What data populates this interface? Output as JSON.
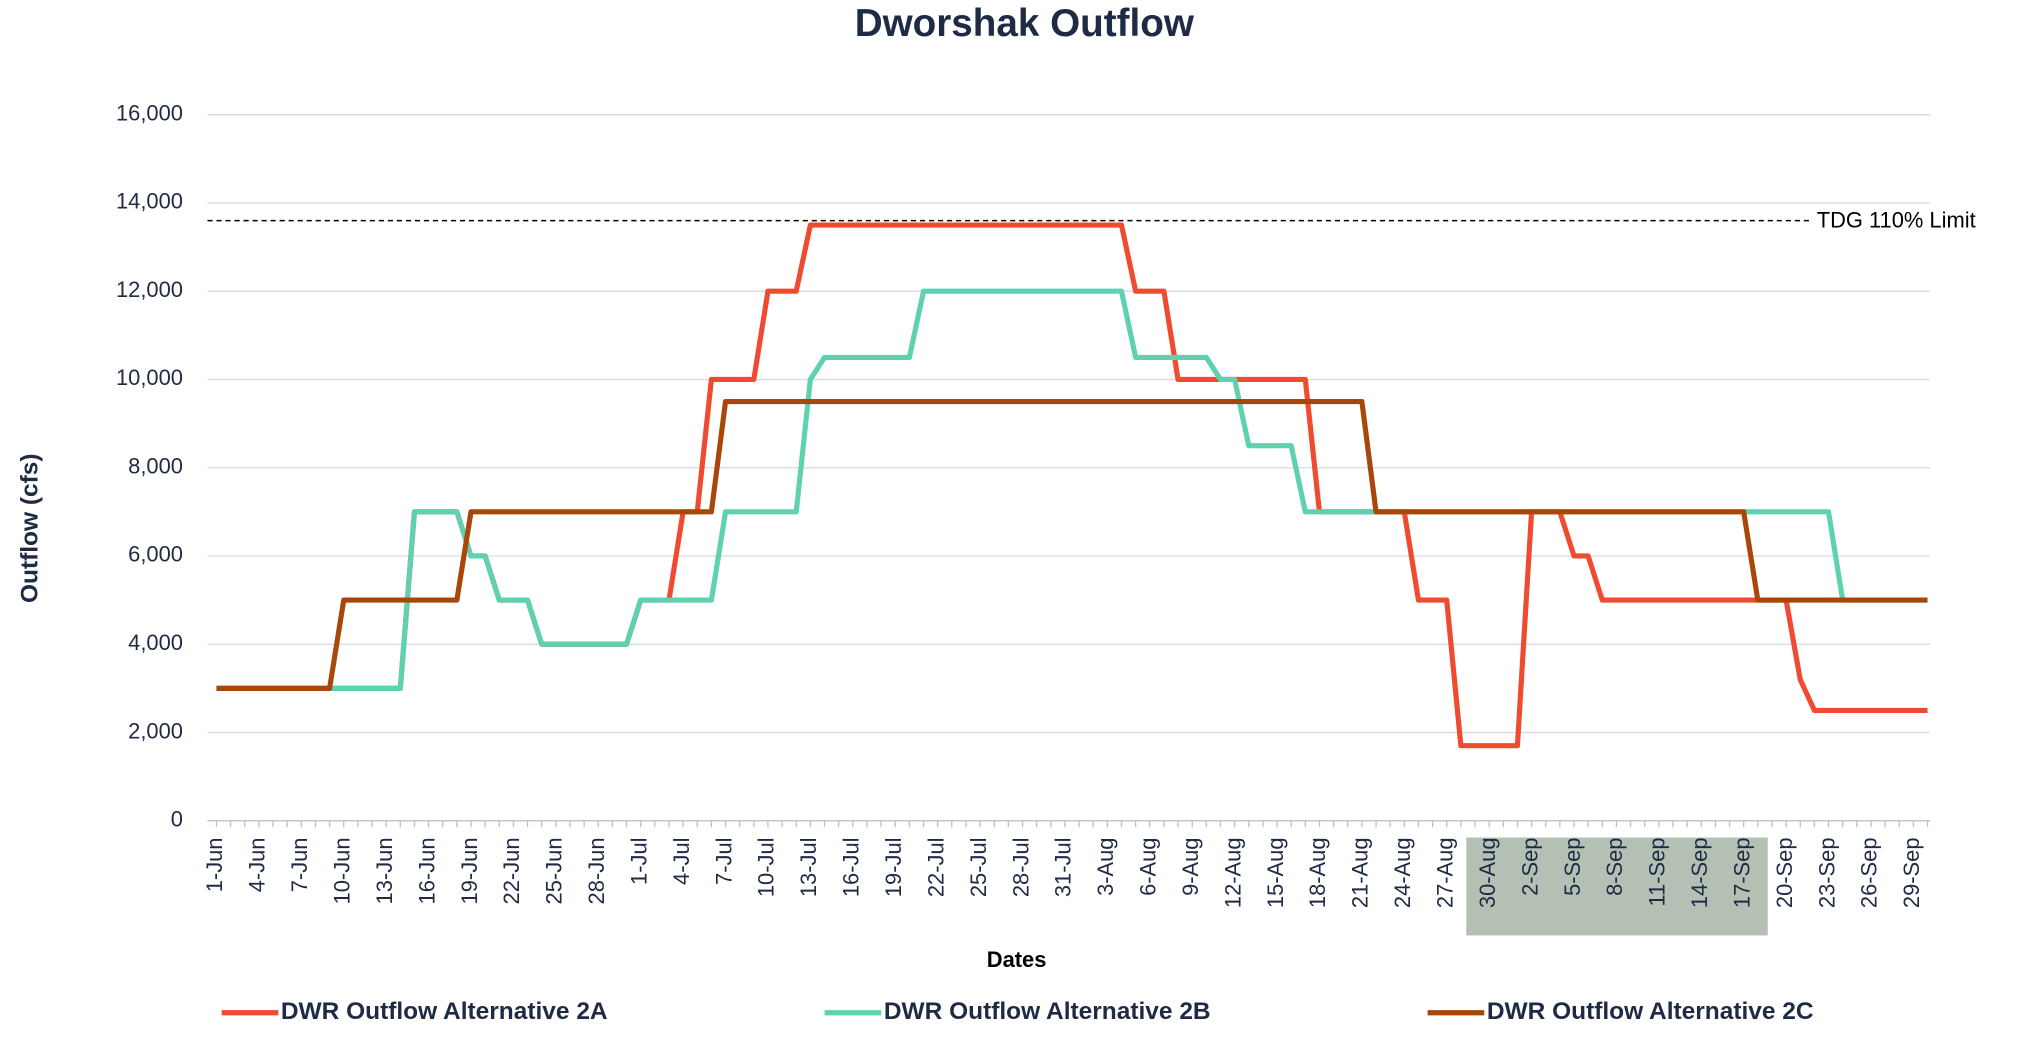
{
  "chart_data": {
    "type": "line",
    "title": "Dworshak Outflow",
    "x_label": "Dates",
    "y_label": "Outflow (cfs)",
    "categories": [
      "1-Jun",
      null,
      null,
      "4-Jun",
      null,
      null,
      "7-Jun",
      null,
      null,
      "10-Jun",
      null,
      null,
      "13-Jun",
      null,
      null,
      "16-Jun",
      null,
      null,
      "19-Jun",
      null,
      null,
      "22-Jun",
      null,
      null,
      "25-Jun",
      null,
      null,
      "28-Jun",
      null,
      null,
      "1-Jul",
      null,
      null,
      "4-Jul",
      null,
      null,
      "7-Jul",
      null,
      null,
      "10-Jul",
      null,
      null,
      "13-Jul",
      null,
      null,
      "16-Jul",
      null,
      null,
      "19-Jul",
      null,
      null,
      "22-Jul",
      null,
      null,
      "25-Jul",
      null,
      null,
      "28-Jul",
      null,
      null,
      "31-Jul",
      null,
      null,
      "3-Aug",
      null,
      null,
      "6-Aug",
      null,
      null,
      "9-Aug",
      null,
      null,
      "12-Aug",
      null,
      null,
      "15-Aug",
      null,
      null,
      "18-Aug",
      null,
      null,
      "21-Aug",
      null,
      null,
      "24-Aug",
      null,
      null,
      "27-Aug",
      null,
      null,
      "30-Aug",
      null,
      null,
      "2-Sep",
      null,
      null,
      "5-Sep",
      null,
      null,
      "8-Sep",
      null,
      null,
      "11-Sep",
      null,
      null,
      "14-Sep",
      null,
      null,
      "17-Sep",
      null,
      null,
      "20-Sep",
      null,
      null,
      "23-Sep",
      null,
      null,
      "26-Sep",
      null,
      null,
      "29-Sep",
      null
    ],
    "series": [
      {
        "name": "DWR Outflow Alternative 2A",
        "color": "#f04a30",
        "values": [
          3000,
          3000,
          3000,
          3000,
          3000,
          3000,
          3000,
          3000,
          3000,
          3000,
          3000,
          3000,
          3000,
          3000,
          7000,
          7000,
          7000,
          7000,
          6000,
          6000,
          5000,
          5000,
          5000,
          4000,
          4000,
          4000,
          4000,
          4000,
          4000,
          4000,
          5000,
          5000,
          5000,
          7000,
          7000,
          10000,
          10000,
          10000,
          10000,
          12000,
          12000,
          12000,
          13500,
          13500,
          13500,
          13500,
          13500,
          13500,
          13500,
          13500,
          13500,
          13500,
          13500,
          13500,
          13500,
          13500,
          13500,
          13500,
          13500,
          13500,
          13500,
          13500,
          13500,
          13500,
          13500,
          12000,
          12000,
          12000,
          10000,
          10000,
          10000,
          10000,
          10000,
          10000,
          10000,
          10000,
          10000,
          10000,
          7000,
          7000,
          7000,
          7000,
          7000,
          7000,
          7000,
          5000,
          5000,
          5000,
          1700,
          1700,
          1700,
          1700,
          1700,
          7000,
          7000,
          7000,
          6000,
          6000,
          5000,
          5000,
          5000,
          5000,
          5000,
          5000,
          5000,
          5000,
          5000,
          5000,
          5000,
          5000,
          5000,
          5000,
          3200,
          2500,
          2500,
          2500,
          2500,
          2500,
          2500,
          2500,
          2500,
          2500
        ]
      },
      {
        "name": "DWR Outflow Alternative 2B",
        "color": "#5ed1b0",
        "values": [
          3000,
          3000,
          3000,
          3000,
          3000,
          3000,
          3000,
          3000,
          3000,
          3000,
          3000,
          3000,
          3000,
          3000,
          7000,
          7000,
          7000,
          7000,
          6000,
          6000,
          5000,
          5000,
          5000,
          4000,
          4000,
          4000,
          4000,
          4000,
          4000,
          4000,
          5000,
          5000,
          5000,
          5000,
          5000,
          5000,
          7000,
          7000,
          7000,
          7000,
          7000,
          7000,
          10000,
          10500,
          10500,
          10500,
          10500,
          10500,
          10500,
          10500,
          12000,
          12000,
          12000,
          12000,
          12000,
          12000,
          12000,
          12000,
          12000,
          12000,
          12000,
          12000,
          12000,
          12000,
          12000,
          10500,
          10500,
          10500,
          10500,
          10500,
          10500,
          10000,
          10000,
          8500,
          8500,
          8500,
          8500,
          7000,
          7000,
          7000,
          7000,
          7000,
          7000,
          7000,
          7000,
          7000,
          7000,
          7000,
          7000,
          7000,
          7000,
          7000,
          7000,
          7000,
          7000,
          7000,
          7000,
          7000,
          7000,
          7000,
          7000,
          7000,
          7000,
          7000,
          7000,
          7000,
          7000,
          7000,
          7000,
          7000,
          7000,
          7000,
          7000,
          7000,
          7000,
          5000,
          5000,
          5000,
          5000,
          5000,
          5000,
          5000
        ]
      },
      {
        "name": "DWR Outflow Alternative 2C",
        "color": "#a9470a",
        "values": [
          3000,
          3000,
          3000,
          3000,
          3000,
          3000,
          3000,
          3000,
          3000,
          5000,
          5000,
          5000,
          5000,
          5000,
          5000,
          5000,
          5000,
          5000,
          7000,
          7000,
          7000,
          7000,
          7000,
          7000,
          7000,
          7000,
          7000,
          7000,
          7000,
          7000,
          7000,
          7000,
          7000,
          7000,
          7000,
          7000,
          9500,
          9500,
          9500,
          9500,
          9500,
          9500,
          9500,
          9500,
          9500,
          9500,
          9500,
          9500,
          9500,
          9500,
          9500,
          9500,
          9500,
          9500,
          9500,
          9500,
          9500,
          9500,
          9500,
          9500,
          9500,
          9500,
          9500,
          9500,
          9500,
          9500,
          9500,
          9500,
          9500,
          9500,
          9500,
          9500,
          9500,
          9500,
          9500,
          9500,
          9500,
          9500,
          9500,
          9500,
          9500,
          9500,
          7000,
          7000,
          7000,
          7000,
          7000,
          7000,
          7000,
          7000,
          7000,
          7000,
          7000,
          7000,
          7000,
          7000,
          7000,
          7000,
          7000,
          7000,
          7000,
          7000,
          7000,
          7000,
          7000,
          7000,
          7000,
          7000,
          7000,
          5000,
          5000,
          5000,
          5000,
          5000,
          5000,
          5000,
          5000,
          5000,
          5000,
          5000,
          5000,
          5000
        ]
      }
    ],
    "reference_line": {
      "value": 13600,
      "label": "TDG 110% Limit"
    },
    "ylim": [
      0,
      16000
    ],
    "yticks": [
      0,
      {
        "value": 2000,
        "label": "2,000"
      },
      {
        "value": 4000,
        "label": "4,000"
      },
      {
        "value": 6000,
        "label": "6,000"
      },
      {
        "value": 8000,
        "label": "8,000"
      },
      {
        "value": 10000,
        "label": "10,000"
      },
      {
        "value": 12000,
        "label": "12,000"
      },
      {
        "value": 14000,
        "label": "14,000"
      },
      {
        "value": 16000,
        "label": "16,000"
      }
    ],
    "grid": true,
    "legend": "bottom"
  }
}
